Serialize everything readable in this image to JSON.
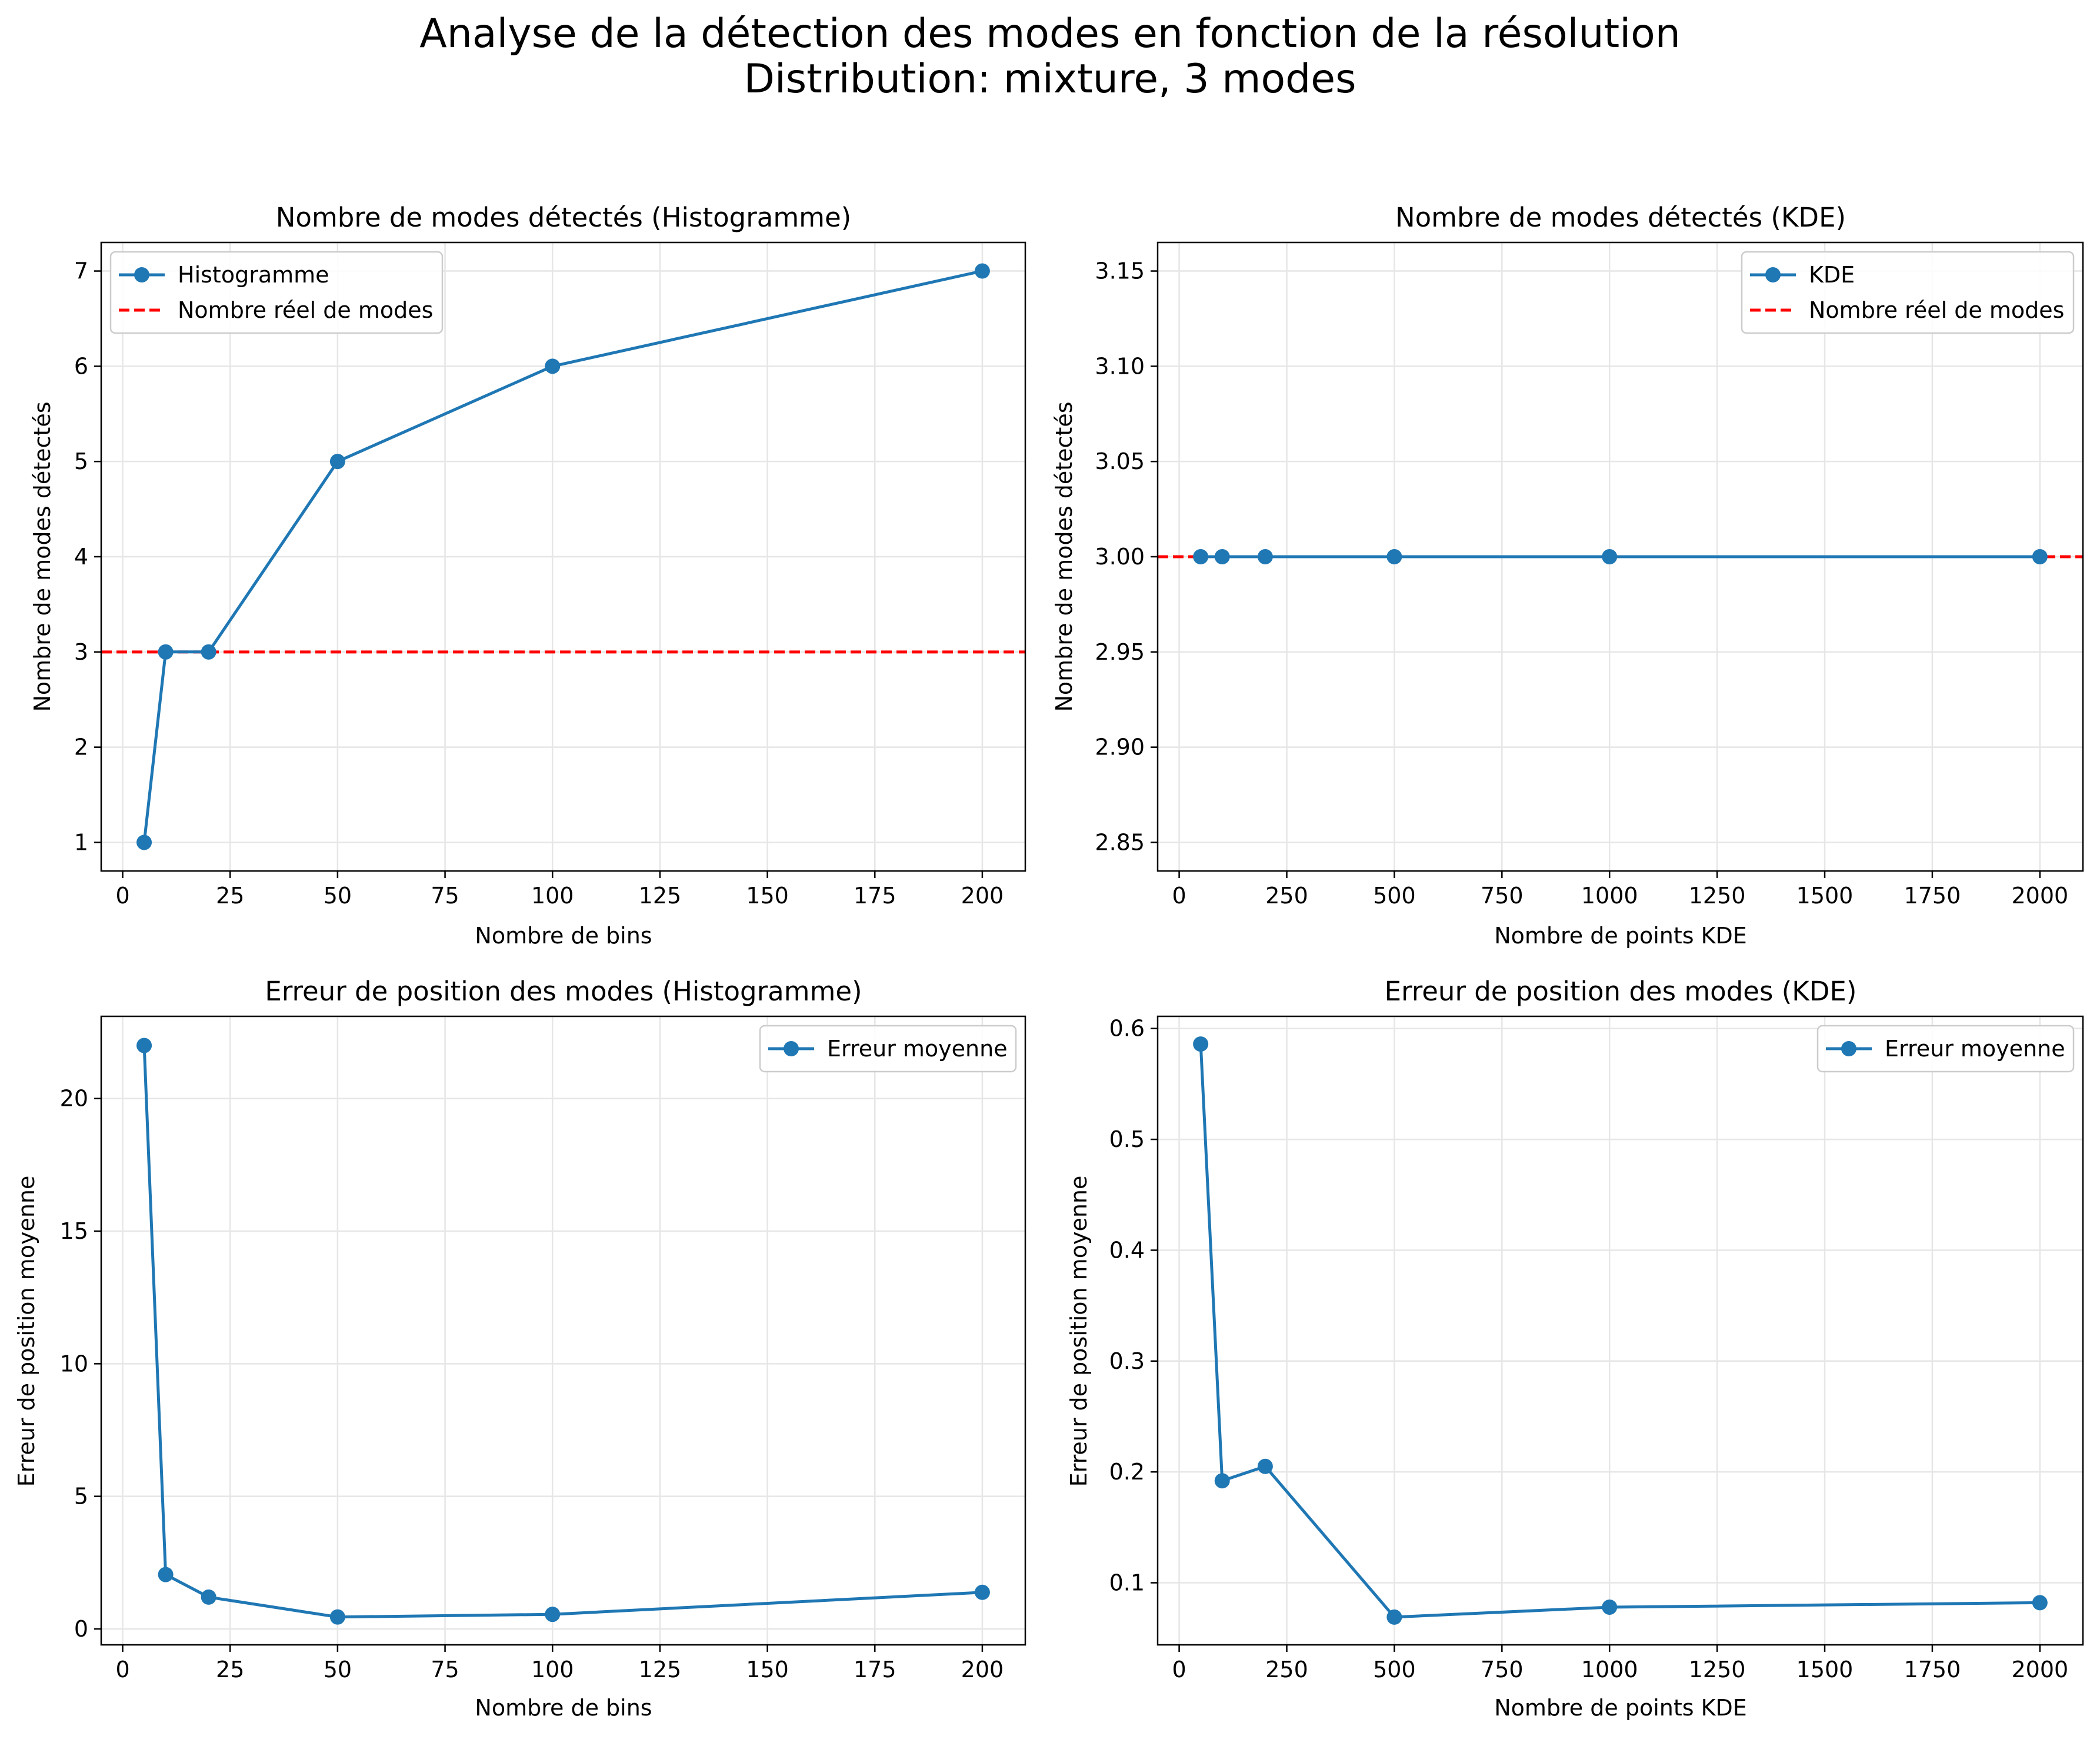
{
  "figure": {
    "title_line1": "Analyse de la détection des modes en fonction de la résolution",
    "title_line2": "Distribution: mixture, 3 modes"
  },
  "colors": {
    "series": "#1f77b4",
    "reference": "#ff0000",
    "grid": "#e6e6e6",
    "frame": "#000000"
  },
  "chart_data": [
    {
      "type": "line",
      "title": "Nombre de modes détectés (Histogramme)",
      "xlabel": "Nombre de bins",
      "ylabel": "Nombre de modes détectés",
      "xlim": [
        -5,
        210
      ],
      "ylim": [
        0.7,
        7.3
      ],
      "xticks": [
        0,
        25,
        50,
        75,
        100,
        125,
        150,
        175,
        200
      ],
      "yticks": [
        1,
        2,
        3,
        4,
        5,
        6,
        7
      ],
      "ytick_labels": [
        "1",
        "2",
        "3",
        "4",
        "5",
        "6",
        "7"
      ],
      "grid": true,
      "legend_position": "upper left",
      "series": [
        {
          "name": "Histogramme",
          "x": [
            5,
            10,
            20,
            50,
            100,
            200
          ],
          "y": [
            1,
            3,
            3,
            5,
            6,
            7
          ]
        }
      ],
      "reference_line": {
        "name": "Nombre réel de modes",
        "y": 3
      }
    },
    {
      "type": "line",
      "title": "Nombre de modes détectés (KDE)",
      "xlabel": "Nombre de points KDE",
      "ylabel": "Nombre de modes détectés",
      "xlim": [
        -50,
        2100
      ],
      "ylim": [
        2.835,
        3.165
      ],
      "xticks": [
        0,
        250,
        500,
        750,
        1000,
        1250,
        1500,
        1750,
        2000
      ],
      "yticks": [
        2.85,
        2.9,
        2.95,
        3.0,
        3.05,
        3.1,
        3.15
      ],
      "ytick_labels": [
        "2.85",
        "2.90",
        "2.95",
        "3.00",
        "3.05",
        "3.10",
        "3.15"
      ],
      "grid": true,
      "legend_position": "upper right",
      "series": [
        {
          "name": "KDE",
          "x": [
            50,
            100,
            200,
            500,
            1000,
            2000
          ],
          "y": [
            3,
            3,
            3,
            3,
            3,
            3
          ]
        }
      ],
      "reference_line": {
        "name": "Nombre réel de modes",
        "y": 3
      }
    },
    {
      "type": "line",
      "title": "Erreur de position des modes (Histogramme)",
      "xlabel": "Nombre de bins",
      "ylabel": "Erreur de position moyenne",
      "xlim": [
        -5,
        210
      ],
      "ylim": [
        -0.6,
        23.1
      ],
      "xticks": [
        0,
        25,
        50,
        75,
        100,
        125,
        150,
        175,
        200
      ],
      "yticks": [
        0,
        5,
        10,
        15,
        20
      ],
      "ytick_labels": [
        "0",
        "5",
        "10",
        "15",
        "20"
      ],
      "grid": true,
      "legend_position": "upper right",
      "series": [
        {
          "name": "Erreur moyenne",
          "x": [
            5,
            10,
            20,
            50,
            100,
            200
          ],
          "y": [
            22.0,
            2.05,
            1.2,
            0.45,
            0.55,
            1.38
          ]
        }
      ],
      "reference_line": null
    },
    {
      "type": "line",
      "title": "Erreur de position des modes (KDE)",
      "xlabel": "Nombre de points KDE",
      "ylabel": "Erreur de position moyenne",
      "xlim": [
        -50,
        2100
      ],
      "ylim": [
        0.044,
        0.611
      ],
      "xticks": [
        0,
        250,
        500,
        750,
        1000,
        1250,
        1500,
        1750,
        2000
      ],
      "yticks": [
        0.1,
        0.2,
        0.3,
        0.4,
        0.5,
        0.6
      ],
      "ytick_labels": [
        "0.1",
        "0.2",
        "0.3",
        "0.4",
        "0.5",
        "0.6"
      ],
      "grid": true,
      "legend_position": "upper right",
      "series": [
        {
          "name": "Erreur moyenne",
          "x": [
            50,
            100,
            200,
            500,
            1000,
            2000
          ],
          "y": [
            0.586,
            0.192,
            0.205,
            0.069,
            0.078,
            0.082
          ]
        }
      ],
      "reference_line": null
    }
  ]
}
